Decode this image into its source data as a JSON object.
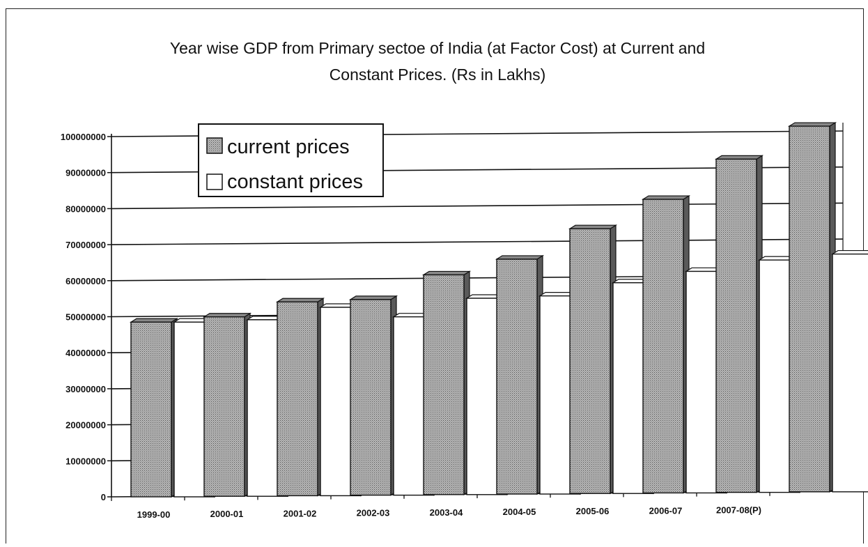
{
  "chart_data": {
    "type": "bar",
    "title": "Year wise GDP from Primary sectoe of India (at Factor Cost) at Current and Constant Prices. (Rs in Lakhs)",
    "title_lines": [
      "Year wise GDP from Primary sectoe of India (at Factor Cost) at Current and",
      "Constant Prices. (Rs in Lakhs)"
    ],
    "categories": [
      "1999-00",
      "2000-01",
      "2001-02",
      "2002-03",
      "2003-04",
      "2004-05",
      "2005-06",
      "2006-07",
      "2007-08(P)",
      ""
    ],
    "series": [
      {
        "name": "current prices",
        "values": [
          48500000,
          49800000,
          53800000,
          54300000,
          61000000,
          65200000,
          73500000,
          81500000,
          92500000,
          101500000
        ],
        "color": "#a8a8a8"
      },
      {
        "name": "constant prices",
        "values": [
          48500000,
          49000000,
          52300000,
          49500000,
          54500000,
          55000000,
          58500000,
          61500000,
          64500000,
          66000000
        ],
        "color": "#ffffff"
      }
    ],
    "yticks": [
      "0",
      "10000000",
      "20000000",
      "30000000",
      "40000000",
      "50000000",
      "60000000",
      "70000000",
      "80000000",
      "90000000",
      "100000000"
    ],
    "ylim": [
      0,
      100000000
    ],
    "xlabel": "",
    "ylabel": "",
    "grid": true,
    "legend_position": "top-left"
  }
}
